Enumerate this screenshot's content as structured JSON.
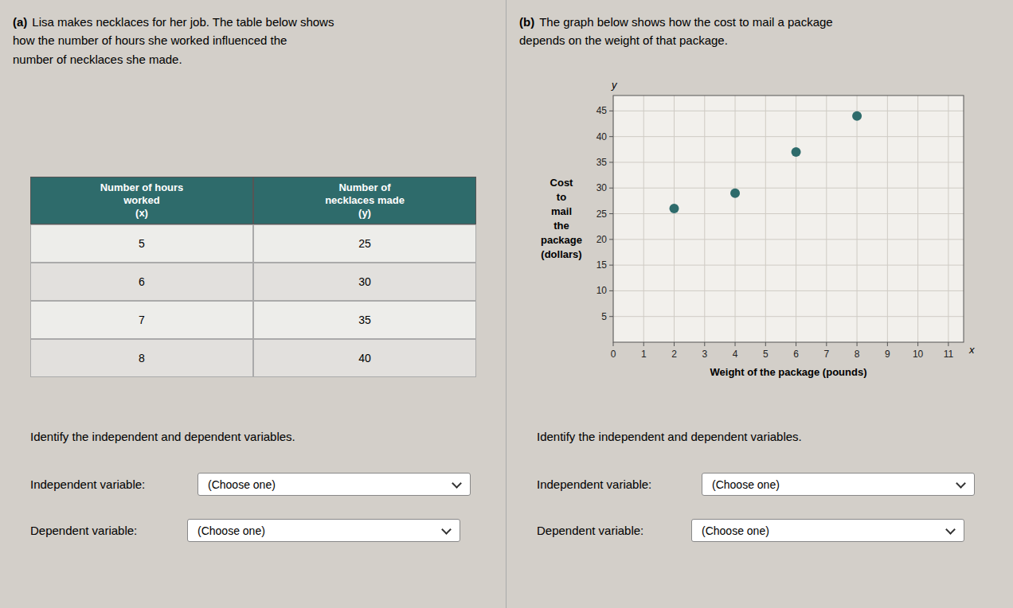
{
  "chart_data": [
    {
      "type": "table",
      "title": "(a)",
      "subtitle": "Lisa makes necklaces for her job. The table below shows\nhow the number of hours she worked influenced the\nnumber of necklaces she made.",
      "columns": [
        "Number of hours\nworked\n(x)",
        "Number of\nnecklaces made\n(y)"
      ],
      "rows": [
        [
          5,
          25
        ],
        [
          6,
          30
        ],
        [
          7,
          35
        ],
        [
          8,
          40
        ]
      ],
      "color": "#2e6b6b",
      "annotations": [
        "Identify the independent and dependent variables.",
        "Independent variable:",
        "(Choose one)",
        "Dependent variable:",
        "(Choose one)"
      ]
    },
    {
      "type": "scatter",
      "title": "(b)",
      "subtitle": "The graph below shows how the cost to mail a package\ndepends on the weight of that package.",
      "x": [
        2,
        4,
        6,
        8
      ],
      "values": [
        26,
        29,
        37,
        44
      ],
      "color": "#2e6b6b",
      "xlabel": "Weight of the package (pounds)",
      "ylabel": "Cost\nto\nmail\nthe\npackage\n(dollars)",
      "xlim": [
        0,
        11.5
      ],
      "ylim": [
        0,
        48
      ],
      "xticks": [
        0,
        1,
        2,
        3,
        4,
        5,
        6,
        7,
        8,
        9,
        10,
        11
      ],
      "yticks": [
        5,
        10,
        15,
        20,
        25,
        30,
        35,
        40,
        45
      ],
      "grid": true,
      "annotations": [
        "y",
        "x",
        "Identify the independent and dependent variables.",
        "Independent variable:",
        "(Choose one)",
        "Dependent variable:",
        "(Choose one)"
      ]
    }
  ]
}
